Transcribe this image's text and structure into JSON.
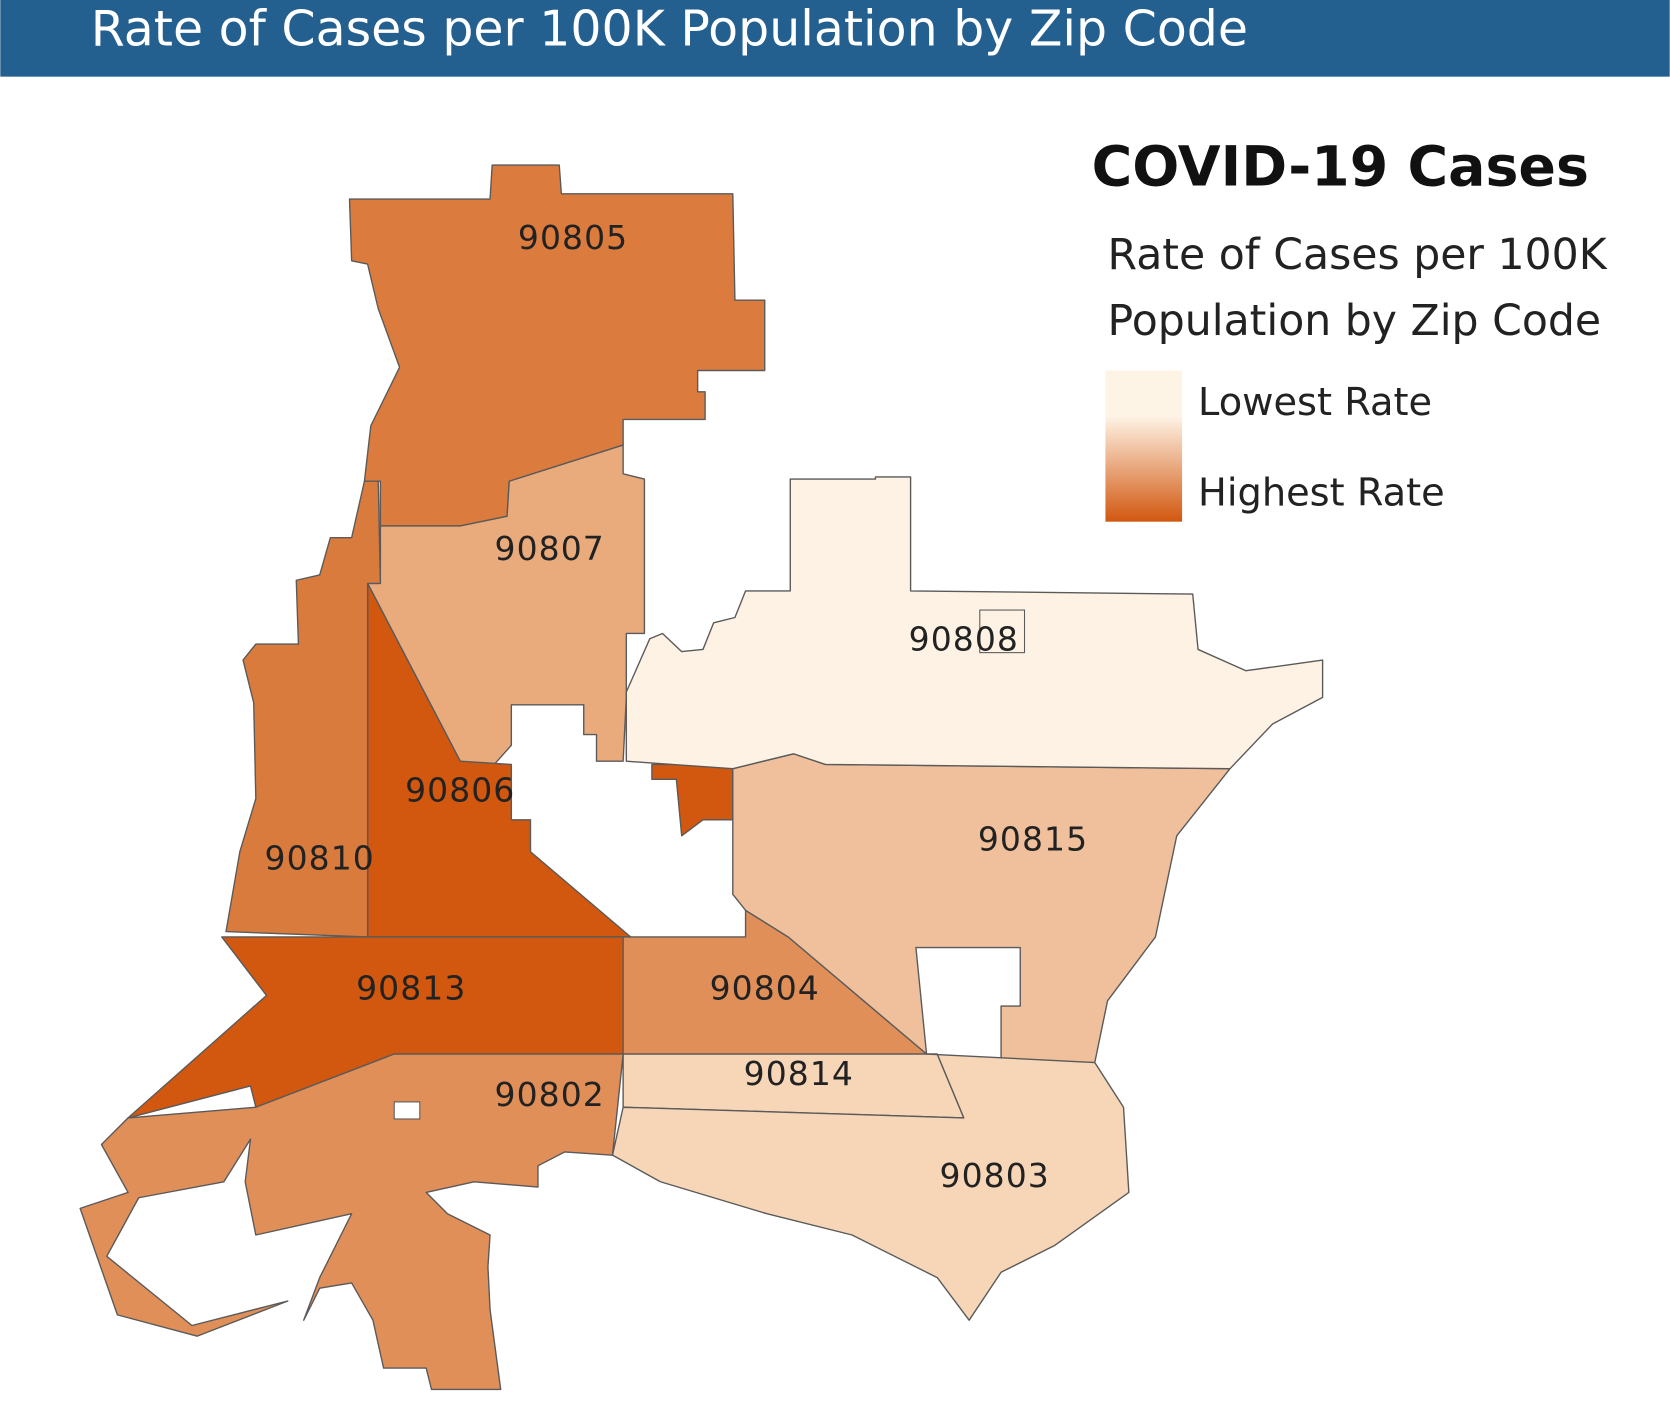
{
  "header": {
    "title": "Rate of Cases per 100K Population by Zip Code",
    "color": "#235f8f"
  },
  "legend": {
    "title": "COVID-19 Cases",
    "subtitle_lines": [
      "Rate of Cases per 100K",
      "Population by Zip Code"
    ],
    "low_label": "Lowest Rate",
    "high_label": "Highest Rate",
    "low_color": "#fef4e6",
    "high_color": "#d2570f"
  },
  "regions": [
    {
      "zip": "90805",
      "color": "#db7c3e"
    },
    {
      "zip": "90807",
      "color": "#e9ab7c"
    },
    {
      "zip": "90806",
      "color": "#d2570f"
    },
    {
      "zip": "90810",
      "color": "#da7b3e"
    },
    {
      "zip": "90813",
      "color": "#d2570f"
    },
    {
      "zip": "90804",
      "color": "#e08f58"
    },
    {
      "zip": "90815",
      "color": "#efc09b"
    },
    {
      "zip": "90808",
      "color": "#fdf2e3"
    },
    {
      "zip": "90814",
      "color": "#f6d6b7"
    },
    {
      "zip": "90803",
      "color": "#f6d6b7"
    },
    {
      "zip": "90802",
      "color": "#e08f58"
    }
  ]
}
